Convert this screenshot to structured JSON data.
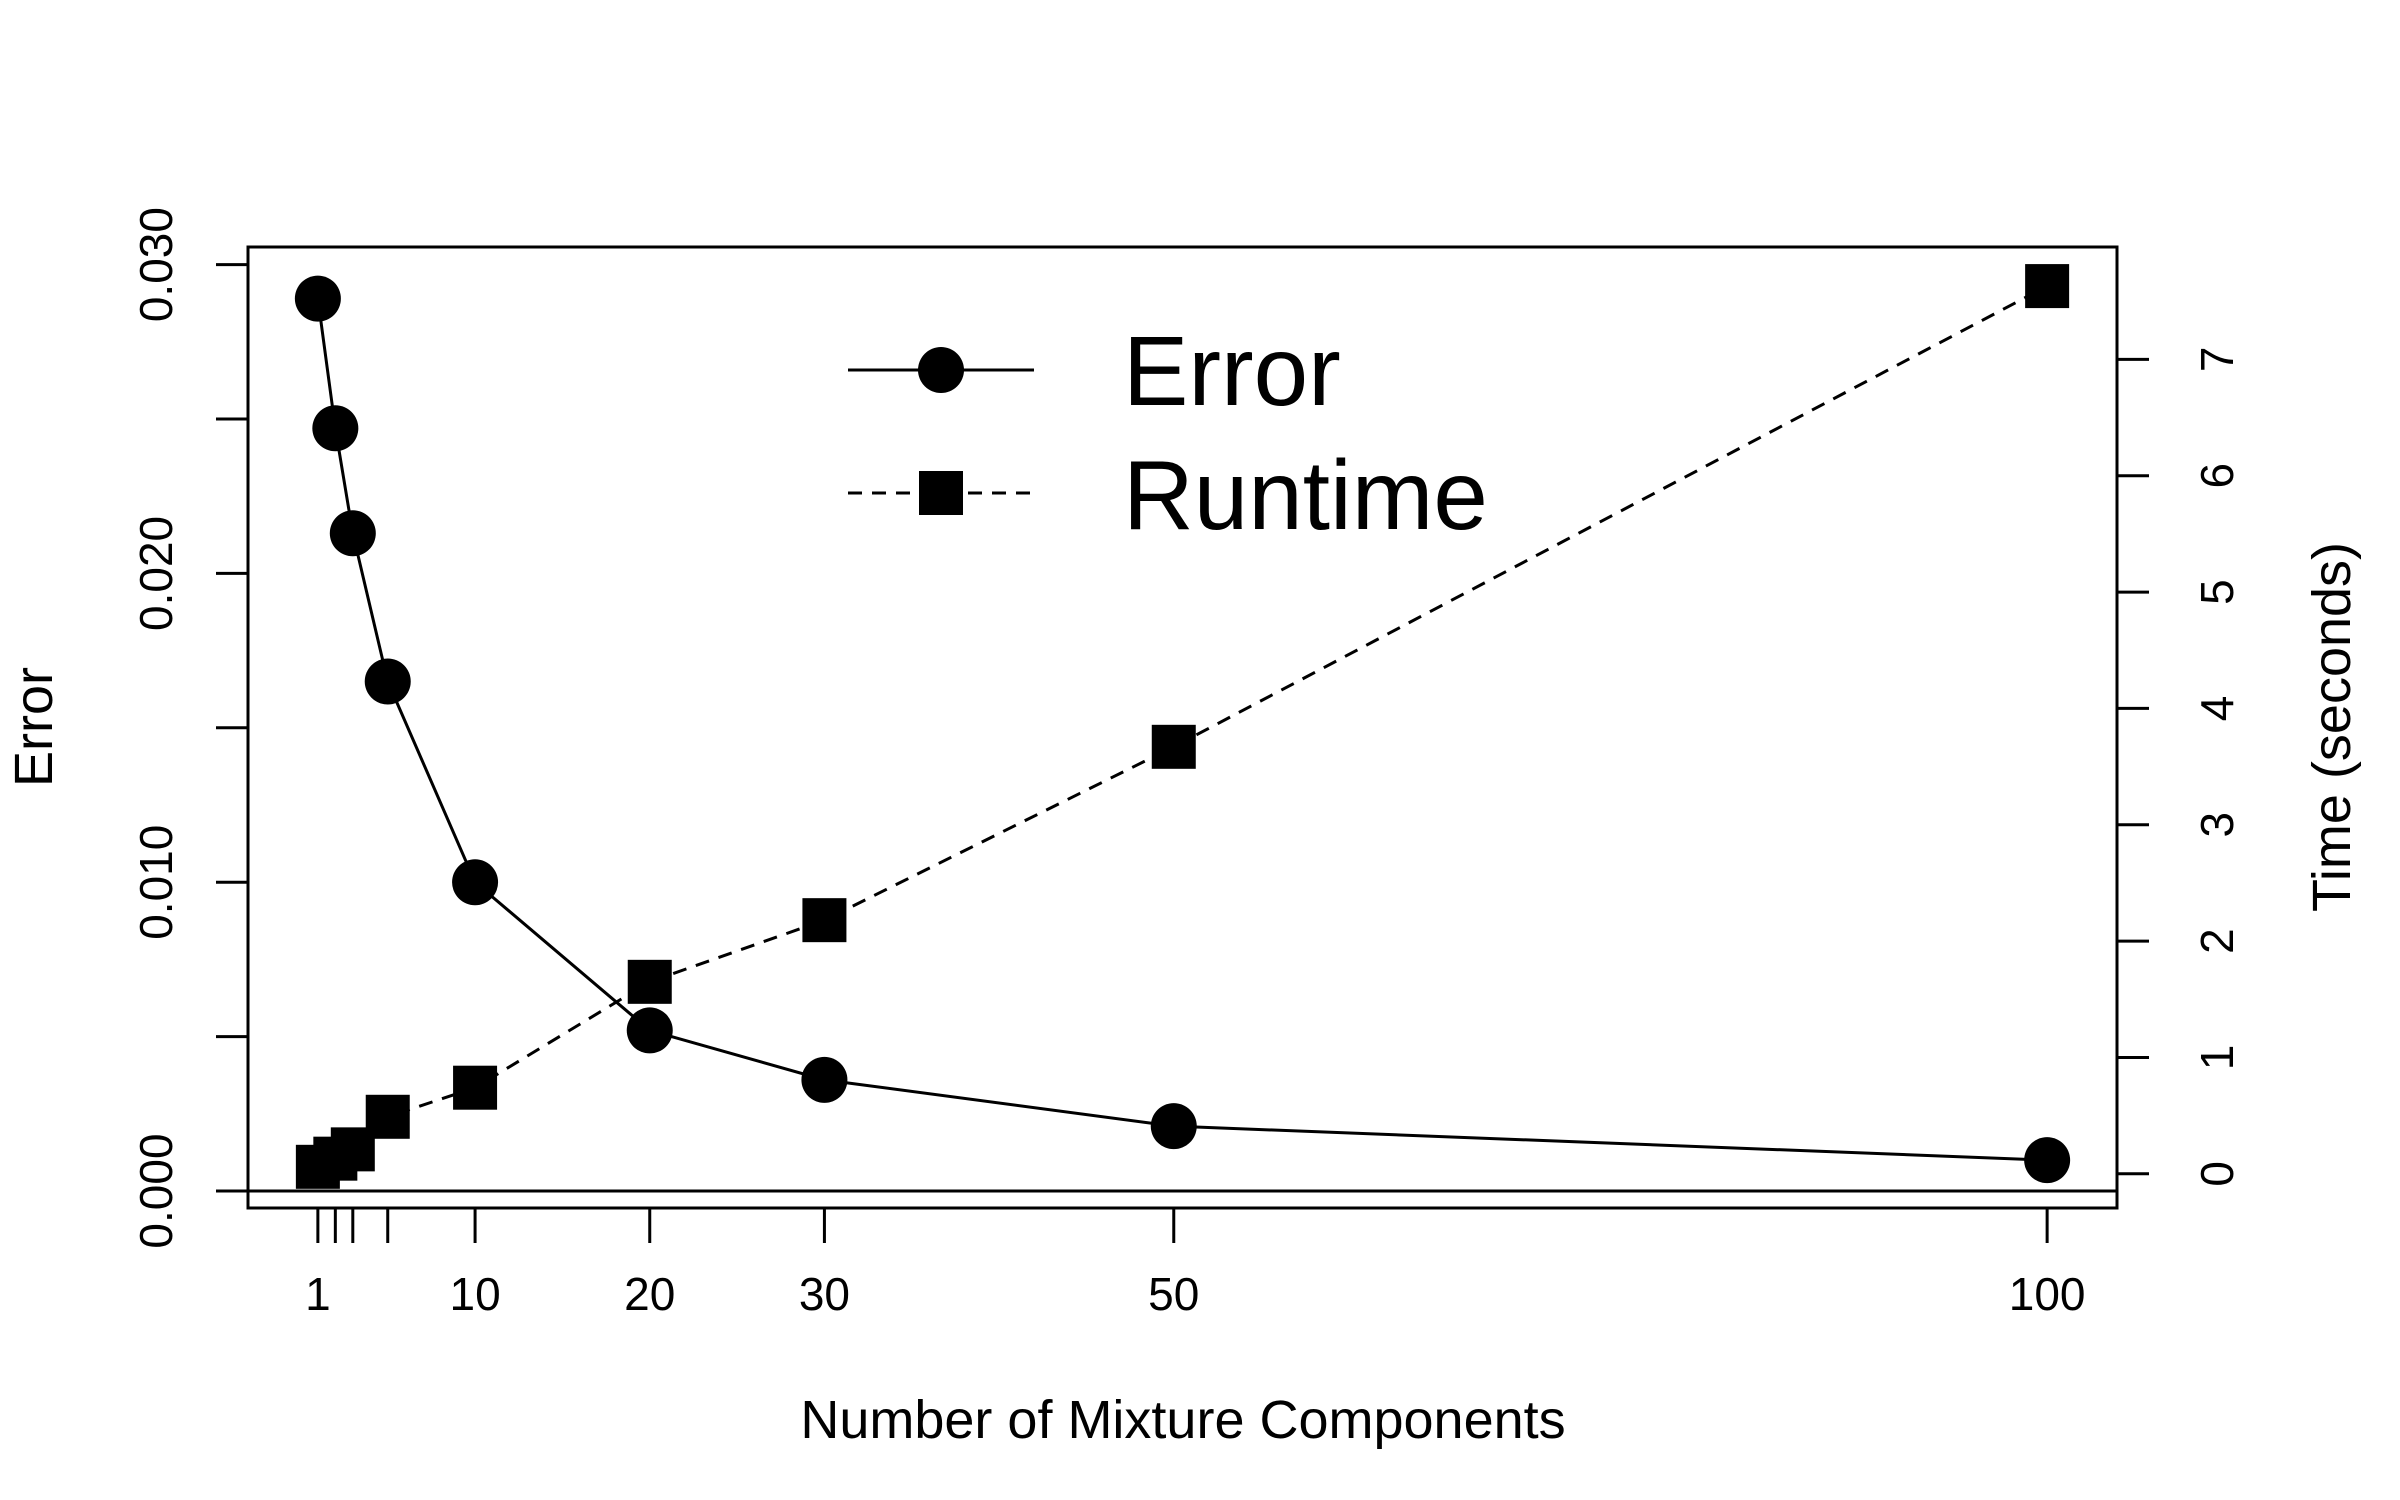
{
  "chart_data": {
    "type": "line",
    "title": "",
    "xlabel": "Number of Mixture Components",
    "ylabel": "Error",
    "y2label": "Time (seconds)",
    "xlim": [
      -3,
      104
    ],
    "ylim": [
      -0.00055,
      0.03057
    ],
    "y2lim": [
      -0.294,
      7.966
    ],
    "x_ticks": [
      1,
      2,
      3,
      5,
      10,
      20,
      30,
      50,
      100
    ],
    "x_tick_labels": [
      "1",
      "",
      "",
      "",
      "10",
      "20",
      "30",
      "50",
      "100"
    ],
    "y_ticks": [
      0,
      0.005,
      0.01,
      0.015,
      0.02,
      0.025,
      0.03
    ],
    "y_tick_labels": [
      "0.000",
      "",
      "0.010",
      "",
      "0.020",
      "",
      "0.030"
    ],
    "y2_ticks": [
      0,
      1,
      2,
      3,
      4,
      5,
      6,
      7
    ],
    "y2_tick_labels": [
      "0",
      "1",
      "2",
      "3",
      "4",
      "5",
      "6",
      "7"
    ],
    "x": [
      1,
      2,
      3,
      5,
      10,
      20,
      30,
      50,
      100
    ],
    "series": [
      {
        "name": "Error",
        "axis": "left",
        "marker": "circle",
        "line": "solid",
        "values": [
          0.0289,
          0.0247,
          0.0213,
          0.0165,
          0.01,
          0.0052,
          0.0036,
          0.0021,
          0.001
        ]
      },
      {
        "name": "Runtime",
        "axis": "right",
        "marker": "square",
        "line": "dashed",
        "values": [
          0.06,
          0.13,
          0.21,
          0.49,
          0.74,
          1.65,
          2.18,
          3.67,
          7.63
        ]
      }
    ],
    "reference_line": {
      "axis": "left",
      "y": 0
    },
    "legend": {
      "position": "top-center",
      "entries": [
        "Error",
        "Runtime"
      ]
    },
    "grid": false,
    "colors": {
      "ink": "#000000",
      "background": "#ffffff"
    }
  }
}
